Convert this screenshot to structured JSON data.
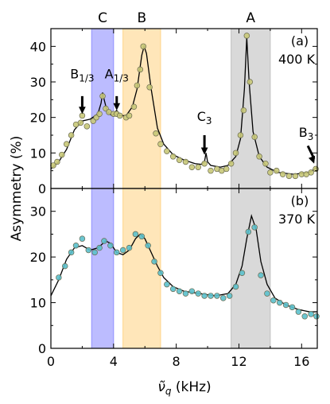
{
  "chart_data": [
    {
      "panel": "(a)",
      "type": "scatter",
      "temperature_label": "400 K",
      "xlabel": "ν̃_q (kHz)",
      "ylabel": "Asymmetry (%)",
      "xlim": [
        0,
        17
      ],
      "ylim": [
        0,
        45
      ],
      "xticks": [
        0,
        4,
        8,
        12,
        16
      ],
      "yticks": [
        0,
        10,
        20,
        30,
        40
      ],
      "marker_color": "#c8c878",
      "points": [
        {
          "x": 0.15,
          "y": 6.5
        },
        {
          "x": 0.4,
          "y": 7.5
        },
        {
          "x": 0.7,
          "y": 9.5
        },
        {
          "x": 1.0,
          "y": 12.5
        },
        {
          "x": 1.3,
          "y": 15.0
        },
        {
          "x": 1.6,
          "y": 18.0
        },
        {
          "x": 1.9,
          "y": 18.5
        },
        {
          "x": 2.0,
          "y": 20.5
        },
        {
          "x": 2.3,
          "y": 17.5
        },
        {
          "x": 2.7,
          "y": 19.0
        },
        {
          "x": 2.9,
          "y": 20.0
        },
        {
          "x": 3.1,
          "y": 21.0
        },
        {
          "x": 3.3,
          "y": 26.0
        },
        {
          "x": 3.5,
          "y": 22.5
        },
        {
          "x": 3.7,
          "y": 21.5
        },
        {
          "x": 4.0,
          "y": 21.0
        },
        {
          "x": 4.2,
          "y": 21.0
        },
        {
          "x": 4.4,
          "y": 20.5
        },
        {
          "x": 4.8,
          "y": 20.0
        },
        {
          "x": 5.0,
          "y": 20.5
        },
        {
          "x": 5.3,
          "y": 23.0
        },
        {
          "x": 5.5,
          "y": 29.0
        },
        {
          "x": 5.7,
          "y": 33.5
        },
        {
          "x": 5.9,
          "y": 40.0
        },
        {
          "x": 6.3,
          "y": 28.5
        },
        {
          "x": 6.7,
          "y": 15.5
        },
        {
          "x": 7.0,
          "y": 12.5
        },
        {
          "x": 7.4,
          "y": 10.5
        },
        {
          "x": 7.8,
          "y": 9.0
        },
        {
          "x": 8.2,
          "y": 8.0
        },
        {
          "x": 8.6,
          "y": 7.5
        },
        {
          "x": 9.0,
          "y": 6.0
        },
        {
          "x": 9.4,
          "y": 6.0
        },
        {
          "x": 9.8,
          "y": 7.0
        },
        {
          "x": 10.2,
          "y": 5.0
        },
        {
          "x": 10.6,
          "y": 5.5
        },
        {
          "x": 10.9,
          "y": 5.0
        },
        {
          "x": 11.2,
          "y": 5.5
        },
        {
          "x": 11.5,
          "y": 7.0
        },
        {
          "x": 11.8,
          "y": 10.0
        },
        {
          "x": 12.1,
          "y": 15.0
        },
        {
          "x": 12.3,
          "y": 22.0
        },
        {
          "x": 12.5,
          "y": 43.0
        },
        {
          "x": 12.7,
          "y": 30.0
        },
        {
          "x": 13.0,
          "y": 14.5
        },
        {
          "x": 13.3,
          "y": 9.0
        },
        {
          "x": 13.7,
          "y": 7.0
        },
        {
          "x": 14.0,
          "y": 4.5
        },
        {
          "x": 14.4,
          "y": 5.0
        },
        {
          "x": 14.8,
          "y": 4.0
        },
        {
          "x": 15.2,
          "y": 3.5
        },
        {
          "x": 15.6,
          "y": 3.5
        },
        {
          "x": 16.0,
          "y": 4.0
        },
        {
          "x": 16.3,
          "y": 4.0
        },
        {
          "x": 16.6,
          "y": 4.5
        },
        {
          "x": 16.9,
          "y": 5.5
        }
      ],
      "fit_curve": [
        [
          0,
          5.5
        ],
        [
          0.5,
          7.5
        ],
        [
          1.0,
          11.0
        ],
        [
          1.5,
          16.5
        ],
        [
          2.0,
          19.0
        ],
        [
          2.5,
          19.5
        ],
        [
          3.0,
          21.0
        ],
        [
          3.2,
          24.0
        ],
        [
          3.3,
          27.0
        ],
        [
          3.4,
          25.0
        ],
        [
          3.6,
          21.5
        ],
        [
          3.9,
          20.5
        ],
        [
          4.1,
          21.5
        ],
        [
          4.2,
          22.0
        ],
        [
          4.4,
          20.5
        ],
        [
          4.8,
          20.5
        ],
        [
          5.2,
          23.0
        ],
        [
          5.5,
          28.0
        ],
        [
          5.8,
          37.5
        ],
        [
          5.95,
          40.0
        ],
        [
          6.1,
          38.0
        ],
        [
          6.4,
          28.0
        ],
        [
          6.8,
          17.0
        ],
        [
          7.2,
          12.5
        ],
        [
          7.8,
          9.5
        ],
        [
          8.5,
          8.0
        ],
        [
          9.2,
          7.0
        ],
        [
          9.6,
          6.8
        ],
        [
          9.8,
          7.5
        ],
        [
          9.9,
          10.0
        ],
        [
          10.0,
          7.5
        ],
        [
          10.2,
          6.5
        ],
        [
          10.8,
          6.0
        ],
        [
          11.3,
          6.5
        ],
        [
          11.8,
          9.0
        ],
        [
          12.1,
          14.0
        ],
        [
          12.35,
          28.0
        ],
        [
          12.5,
          42.5
        ],
        [
          12.65,
          30.0
        ],
        [
          12.9,
          16.0
        ],
        [
          13.3,
          9.0
        ],
        [
          13.8,
          6.0
        ],
        [
          14.5,
          4.5
        ],
        [
          15.5,
          4.0
        ],
        [
          16.5,
          4.5
        ],
        [
          17,
          6.0
        ]
      ],
      "annotations": [
        {
          "label_main": "B",
          "label_sub": "1/3",
          "x": 2.0,
          "y_label": 31.0,
          "arrow_from": 26.0,
          "arrow_to": 21.0
        },
        {
          "label_main": "A",
          "label_sub": "1/3",
          "x": 4.2,
          "y_label": 31.0,
          "arrow_from": 26.0,
          "arrow_to": 22.0
        },
        {
          "label_main": "C",
          "label_sub": "3",
          "x": 9.8,
          "y_label": 19.0,
          "arrow_from": 15.0,
          "arrow_to": 9.5
        },
        {
          "label_main": "B",
          "label_sub": "3",
          "x": 16.6,
          "y_label": 14.5,
          "arrow_from": 12.0,
          "arrow_to": 7.0
        }
      ]
    },
    {
      "panel": "(b)",
      "type": "scatter",
      "temperature_label": "370 K",
      "xlabel": "ν̃_q (kHz)",
      "ylabel": "Asymmetry (%)",
      "xlim": [
        0,
        17
      ],
      "ylim": [
        0,
        35
      ],
      "xticks": [
        0,
        4,
        8,
        12,
        16
      ],
      "yticks": [
        0,
        10,
        20,
        30
      ],
      "marker_color": "#5bc0cc",
      "points": [
        {
          "x": 0.5,
          "y": 15.5
        },
        {
          "x": 0.9,
          "y": 18.0
        },
        {
          "x": 1.3,
          "y": 21.0
        },
        {
          "x": 1.6,
          "y": 22.5
        },
        {
          "x": 2.0,
          "y": 24.0
        },
        {
          "x": 2.4,
          "y": 21.5
        },
        {
          "x": 2.8,
          "y": 21.0
        },
        {
          "x": 3.1,
          "y": 22.0
        },
        {
          "x": 3.4,
          "y": 23.5
        },
        {
          "x": 3.8,
          "y": 22.5
        },
        {
          "x": 4.2,
          "y": 21.0
        },
        {
          "x": 4.6,
          "y": 21.5
        },
        {
          "x": 5.0,
          "y": 22.0
        },
        {
          "x": 5.4,
          "y": 25.0
        },
        {
          "x": 5.8,
          "y": 24.5
        },
        {
          "x": 6.2,
          "y": 22.5
        },
        {
          "x": 6.6,
          "y": 19.0
        },
        {
          "x": 7.0,
          "y": 16.5
        },
        {
          "x": 7.4,
          "y": 14.0
        },
        {
          "x": 7.8,
          "y": 13.0
        },
        {
          "x": 8.2,
          "y": 12.5
        },
        {
          "x": 8.6,
          "y": 12.0
        },
        {
          "x": 9.0,
          "y": 12.5
        },
        {
          "x": 9.4,
          "y": 12.0
        },
        {
          "x": 9.8,
          "y": 11.5
        },
        {
          "x": 10.2,
          "y": 11.5
        },
        {
          "x": 10.6,
          "y": 11.5
        },
        {
          "x": 11.0,
          "y": 11.0
        },
        {
          "x": 11.4,
          "y": 11.5
        },
        {
          "x": 11.8,
          "y": 13.5
        },
        {
          "x": 12.2,
          "y": 16.5
        },
        {
          "x": 12.6,
          "y": 25.5
        },
        {
          "x": 13.0,
          "y": 26.5
        },
        {
          "x": 13.4,
          "y": 16.0
        },
        {
          "x": 13.8,
          "y": 12.0
        },
        {
          "x": 14.2,
          "y": 10.5
        },
        {
          "x": 14.6,
          "y": 10.0
        },
        {
          "x": 15.0,
          "y": 9.5
        },
        {
          "x": 15.4,
          "y": 9.0
        },
        {
          "x": 15.8,
          "y": 8.0
        },
        {
          "x": 16.2,
          "y": 7.0
        },
        {
          "x": 16.6,
          "y": 7.5
        },
        {
          "x": 16.95,
          "y": 7.0
        }
      ],
      "fit_curve": [
        [
          0,
          11.5
        ],
        [
          0.5,
          15.0
        ],
        [
          1.0,
          19.5
        ],
        [
          1.5,
          22.0
        ],
        [
          2.0,
          22.5
        ],
        [
          2.5,
          21.5
        ],
        [
          3.0,
          22.0
        ],
        [
          3.5,
          23.5
        ],
        [
          3.8,
          23.0
        ],
        [
          4.2,
          21.0
        ],
        [
          4.6,
          20.5
        ],
        [
          5.0,
          21.5
        ],
        [
          5.4,
          24.0
        ],
        [
          5.7,
          25.0
        ],
        [
          6.0,
          24.0
        ],
        [
          6.4,
          21.0
        ],
        [
          6.8,
          18.0
        ],
        [
          7.2,
          15.5
        ],
        [
          7.8,
          13.5
        ],
        [
          8.5,
          12.5
        ],
        [
          9.5,
          12.0
        ],
        [
          10.5,
          11.5
        ],
        [
          11.3,
          12.0
        ],
        [
          11.8,
          14.0
        ],
        [
          12.2,
          18.0
        ],
        [
          12.5,
          24.0
        ],
        [
          12.8,
          29.0
        ],
        [
          13.1,
          26.0
        ],
        [
          13.4,
          19.0
        ],
        [
          13.8,
          14.0
        ],
        [
          14.3,
          11.0
        ],
        [
          15.0,
          9.5
        ],
        [
          15.8,
          8.5
        ],
        [
          16.5,
          8.0
        ],
        [
          17,
          8.0
        ]
      ]
    }
  ],
  "bands": [
    {
      "label": "C",
      "xmin": 2.6,
      "xmax": 4.0,
      "color": "#9090ff"
    },
    {
      "label": "B",
      "xmin": 4.6,
      "xmax": 7.0,
      "color": "#ffd58a"
    },
    {
      "label": "A",
      "xmin": 11.5,
      "xmax": 14.0,
      "color": "#c0c0c0"
    }
  ],
  "axis_text": {
    "ylabel": "Asymmetry (%)",
    "xlabel_main": "ν̃",
    "xlabel_sub": "q",
    "xlabel_unit": " (kHz)"
  }
}
